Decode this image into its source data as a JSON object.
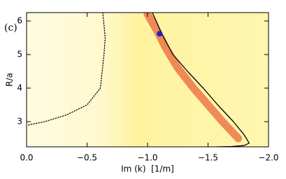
{
  "chart_data": {
    "type": "line",
    "annotation": "(c)",
    "xlabel": "Im (k)  [1/m]",
    "ylabel": "R/a",
    "xlim": [
      0,
      -2.0
    ],
    "ylim": [
      2.25,
      6.25
    ],
    "xticks": [
      {
        "value": 0,
        "label": "0.0"
      },
      {
        "value": -0.5,
        "label": "−0.5"
      },
      {
        "value": -1.0,
        "label": "−1.0"
      },
      {
        "value": -1.5,
        "label": "−1.5"
      },
      {
        "value": -2.0,
        "label": "−2.0"
      }
    ],
    "yticks": [
      3,
      4,
      5,
      6
    ],
    "background": "#fff6a8",
    "series": [
      {
        "color": "#e8502a",
        "style": "band",
        "x": [
          -1.0,
          -1.08,
          -1.15,
          -1.25,
          -1.38,
          -1.5,
          -1.62,
          -1.75
        ],
        "values": [
          6.2,
          5.7,
          5.2,
          4.6,
          4.0,
          3.5,
          3.0,
          2.5
        ]
      },
      {
        "color": "#000000",
        "style": "solid",
        "x": [
          -1.04,
          -1.12,
          -1.21,
          -1.33,
          -1.46,
          -1.58,
          -1.71,
          -1.8,
          -1.84,
          -1.8,
          -1.7,
          -1.57
        ],
        "values": [
          6.25,
          5.6,
          5.0,
          4.5,
          4.0,
          3.5,
          3.0,
          2.6,
          2.36,
          2.29,
          2.26,
          2.25
        ]
      },
      {
        "color": "#000000",
        "style": "dotted",
        "x": [
          -0.63,
          -0.65,
          -0.64,
          -0.61,
          -0.5,
          -0.33,
          -0.15,
          -0.01
        ],
        "values": [
          6.25,
          5.5,
          5.0,
          4.0,
          3.5,
          3.2,
          3.0,
          2.9
        ]
      },
      {
        "color": "#2020c0",
        "style": "marker",
        "x": [
          -1.1
        ],
        "values": [
          5.62
        ]
      }
    ]
  }
}
